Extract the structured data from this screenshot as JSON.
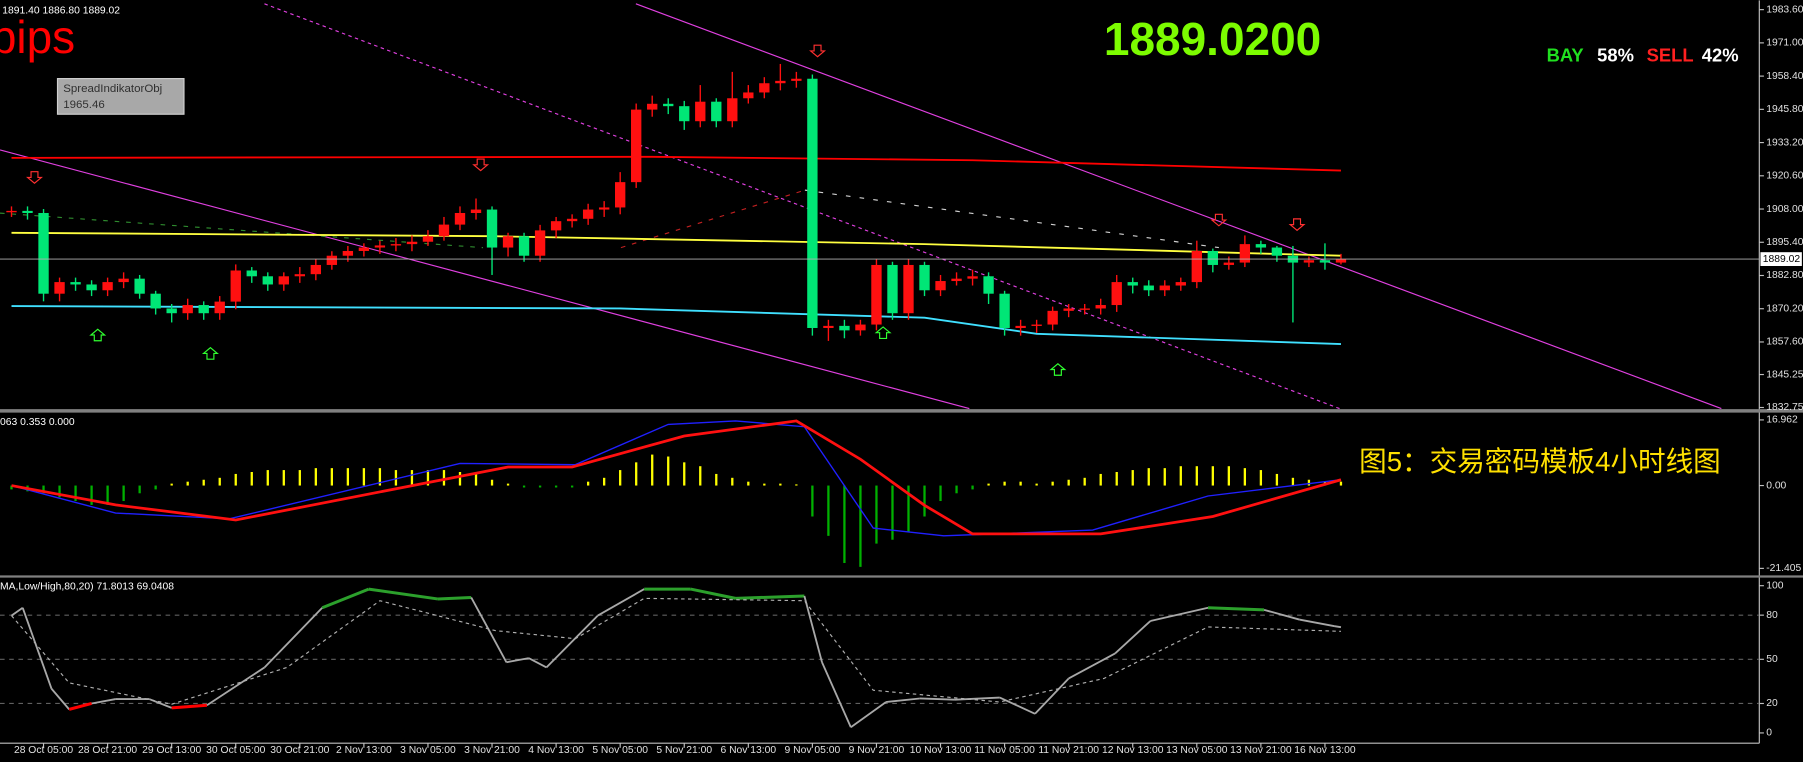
{
  "header": {
    "ohlc_text": "1891.40 1886.80 1889.02",
    "pips_text": "pips",
    "tooltip_name": "SpreadIndikatorObj",
    "tooltip_value": "1965.46",
    "price": "1889.0200",
    "bay_label": "BAY",
    "bay_pct": "58%",
    "sell_label": "SELL",
    "sell_pct": "42%",
    "caption": "图5：交易密码模板4小时线图"
  },
  "chart_data": [
    {
      "type": "candlestick",
      "categories": [
        null,
        null,
        "28 Oct 05:00",
        null,
        null,
        null,
        "28 Oct 21:00",
        null,
        null,
        null,
        "29 Oct 13:00",
        null,
        null,
        null,
        "30 Oct 05:00",
        null,
        null,
        null,
        "30 Oct 21:00",
        null,
        null,
        null,
        "2 Nov 13:00",
        null,
        null,
        null,
        "3 Nov 05:00",
        null,
        null,
        null,
        "3 Nov 21:00",
        null,
        null,
        null,
        "4 Nov 13:00",
        null,
        null,
        null,
        "5 Nov 05:00",
        null,
        null,
        null,
        "5 Nov 21:00",
        null,
        null,
        null,
        "6 Nov 13:00",
        null,
        null,
        null,
        "9 Nov 05:00",
        null,
        null,
        null,
        "9 Nov 21:00",
        null,
        null,
        null,
        "10 Nov 13:00",
        null,
        null,
        null,
        "11 Nov 05:00",
        null,
        null,
        null,
        "11 Nov 21:00",
        null,
        null,
        null,
        "12 Nov 13:00",
        null,
        null,
        null,
        "13 Nov 05:00",
        null,
        null,
        null,
        "13 Nov 21:00",
        null,
        null,
        null,
        "16 Nov 13:00",
        null
      ],
      "open": [
        1907.0,
        1907.3,
        1906.5,
        1875.9,
        1880.3,
        1879.4,
        1877.2,
        1880.3,
        1881.6,
        1875.9,
        1870.3,
        1868.5,
        1871.6,
        1868.5,
        1872.9,
        1884.7,
        1882.5,
        1879.4,
        1882.5,
        1883.3,
        1886.8,
        1890.3,
        1892.1,
        1893.4,
        1894.2,
        1894.7,
        1895.6,
        1897.7,
        1902.1,
        1906.5,
        1907.8,
        1893.4,
        1897.7,
        1890.3,
        1899.9,
        1903.4,
        1904.3,
        1907.8,
        1908.6,
        1918.2,
        1945.7,
        1947.9,
        1947.0,
        1941.3,
        1948.7,
        1941.3,
        1950.0,
        1952.2,
        1955.7,
        1956.6,
        1957.4,
        1862.9,
        1863.7,
        1862.0,
        1864.2,
        1886.8,
        1868.5,
        1886.8,
        1877.2,
        1880.7,
        1881.6,
        1882.5,
        1875.9,
        1862.9,
        1863.7,
        1864.2,
        1869.4,
        1870.3,
        1870.3,
        1871.6,
        1880.3,
        1879.0,
        1877.2,
        1879.0,
        1880.3,
        1892.1,
        1886.8,
        1887.7,
        1894.7,
        1893.4,
        1890.3,
        1887.7,
        1888.6,
        1887.7
      ],
      "high": [
        1909,
        1909,
        1908,
        1882,
        1882,
        1881,
        1882,
        1884,
        1883,
        1877,
        1872,
        1874,
        1873,
        1875,
        1887,
        1886,
        1884,
        1884,
        1886,
        1889,
        1892,
        1894,
        1895,
        1896,
        1897,
        1898,
        1900,
        1905,
        1909,
        1912,
        1909,
        1899,
        1899,
        1902,
        1905,
        1906,
        1910,
        1911,
        1922,
        1948,
        1951,
        1950,
        1949,
        1955,
        1950,
        1960,
        1955,
        1958,
        1963,
        1960,
        1959,
        1866,
        1866,
        1866,
        1889,
        1888,
        1889,
        1888,
        1883,
        1884,
        1885,
        1884,
        1877,
        1866,
        1866,
        1871,
        1872,
        1872,
        1874,
        1883,
        1882,
        1881,
        1881,
        1882,
        1896,
        1893,
        1890,
        1898,
        1896,
        1894,
        1894,
        1890,
        1895,
        1891
      ],
      "low": [
        1905,
        1904,
        1873,
        1873,
        1877,
        1875,
        1875,
        1878,
        1874,
        1868,
        1865,
        1866,
        1866,
        1866,
        1870,
        1880,
        1877,
        1877,
        1880,
        1881,
        1885,
        1888,
        1890,
        1891,
        1892,
        1892,
        1894,
        1896,
        1900,
        1904,
        1883,
        1890,
        1888,
        1888,
        1897,
        1901,
        1902,
        1905,
        1906,
        1916,
        1943,
        1944,
        1938,
        1939,
        1939,
        1939,
        1948,
        1950,
        1953,
        1954,
        1860,
        1858,
        1859,
        1860,
        1862,
        1866,
        1866,
        1875,
        1875,
        1879,
        1879,
        1872,
        1860,
        1860,
        1861,
        1862,
        1867,
        1868,
        1868,
        1869,
        1876,
        1875,
        1875,
        1877,
        1878,
        1884,
        1885,
        1886,
        1891,
        1888,
        1865,
        1886,
        1885,
        1887
      ],
      "close": [
        1907.3,
        1906.5,
        1875.9,
        1880.3,
        1879.4,
        1877.2,
        1880.3,
        1881.6,
        1875.9,
        1870.3,
        1868.5,
        1871.6,
        1868.5,
        1872.9,
        1884.7,
        1882.5,
        1879.4,
        1882.5,
        1883.3,
        1886.8,
        1890.3,
        1892.1,
        1893.4,
        1894.2,
        1894.7,
        1895.6,
        1897.7,
        1902.1,
        1906.5,
        1907.8,
        1893.4,
        1897.7,
        1890.3,
        1899.9,
        1903.4,
        1904.3,
        1907.8,
        1908.6,
        1918.2,
        1945.7,
        1947.9,
        1947.0,
        1941.3,
        1948.7,
        1941.3,
        1950.0,
        1952.2,
        1955.7,
        1956.6,
        1957.4,
        1862.9,
        1863.7,
        1862.0,
        1864.2,
        1886.8,
        1868.5,
        1886.8,
        1877.2,
        1880.7,
        1881.6,
        1882.5,
        1875.9,
        1862.9,
        1863.7,
        1864.2,
        1869.4,
        1870.3,
        1870.3,
        1871.6,
        1880.3,
        1879.0,
        1877.2,
        1879.0,
        1880.3,
        1892.1,
        1886.8,
        1887.7,
        1894.7,
        1893.4,
        1890.3,
        1887.7,
        1888.6,
        1887.7,
        1889.0
      ],
      "up_color": "#ff1010",
      "down_color": "#00e676",
      "overlays": [
        {
          "color": "#ff0000",
          "x": [
            0,
            40,
            60,
            83
          ],
          "values": [
            1927.4,
            1927.8,
            1926.5,
            1922.6
          ]
        },
        {
          "color": "#ffff40",
          "x": [
            0,
            30,
            57,
            83
          ],
          "values": [
            1899.0,
            1897.7,
            1894.7,
            1890.3
          ]
        },
        {
          "color": "#40e0ff",
          "x": [
            0,
            38,
            57,
            64,
            83
          ],
          "values": [
            1871.2,
            1870.3,
            1866.8,
            1860.7,
            1856.8
          ]
        }
      ],
      "ylim": [
        1831.9,
        1985.8
      ],
      "yticks": [
        {
          "value": 1983.6,
          "label": "1983.60"
        },
        {
          "value": 1971,
          "label": "1971.00"
        },
        {
          "value": 1958.4,
          "label": "1958.40"
        },
        {
          "value": 1945.8,
          "label": "1945.80"
        },
        {
          "value": 1933.2,
          "label": "1933.20"
        },
        {
          "value": 1920.6,
          "label": "1920.60"
        },
        {
          "value": 1908,
          "label": "1908.00"
        },
        {
          "value": 1895.4,
          "label": "1895.40"
        },
        {
          "value": 1882.8,
          "label": "1882.80"
        },
        {
          "value": 1870.2,
          "label": "1870.20"
        },
        {
          "value": 1857.6,
          "label": "1857.60"
        },
        1845.25,
        1832.75
      ],
      "current_price": 1889.02
    },
    {
      "type": "macd",
      "header": "063 0.353 0.000",
      "values": [
        -1,
        -1.5,
        -2,
        -3,
        -4,
        -5,
        -5,
        -4,
        -2,
        -1,
        0.5,
        1,
        1.5,
        2,
        3,
        3.5,
        4,
        4,
        4,
        4.5,
        4.5,
        4.5,
        4.5,
        4.5,
        4,
        4,
        4,
        4,
        3.5,
        3,
        1.5,
        0.5,
        -0.5,
        -0.5,
        -0.5,
        -0.5,
        1,
        2,
        4,
        6,
        8,
        7.5,
        6,
        5,
        3,
        2,
        1,
        0.5,
        0.5,
        0.3,
        -8,
        -13,
        -20,
        -21,
        -15,
        -14,
        -12,
        -8,
        -4,
        -2,
        -1,
        0.5,
        1,
        1,
        0.5,
        1,
        1.5,
        2,
        3,
        3.5,
        4,
        4.5,
        4.5,
        5,
        5,
        5,
        5,
        4.5,
        4,
        3,
        2,
        1.5,
        1,
        1
      ],
      "pos_color": "#ffff00",
      "neg_color": "#00b000",
      "lines": [
        {
          "color": "#2020ff",
          "x": [
            0,
            6.5,
            13.6,
            28,
            35.2,
            41,
            45.2,
            49.5,
            53.8,
            58.2,
            67.5,
            74.7,
            83
          ],
          "values": [
            0,
            -7.1,
            -8.6,
            5.7,
            5.4,
            15.8,
            16.7,
            15.2,
            -11,
            -13,
            -11.5,
            -2.7,
            1.5
          ]
        },
        {
          "color": "#ff1010",
          "x": [
            0,
            6.5,
            14,
            31,
            35,
            42,
            49,
            53,
            57,
            60,
            68,
            75,
            83
          ],
          "values": [
            0,
            -5,
            -8.9,
            4.8,
            4.8,
            12.8,
            16.7,
            6.8,
            -5.1,
            -12.5,
            -12.5,
            -8,
            1.5
          ]
        }
      ],
      "ylim": [
        -23.2,
        18.4
      ],
      "yticks": [
        16.962,
        {
          "value": 0,
          "label": "0.00"
        },
        -21.405
      ]
    },
    {
      "type": "stochastic",
      "header": "MA,Low/High,80,20) 71.8013 69.0408",
      "high_color": "#2ca02c",
      "low_color": "#ff0000",
      "lines": [
        {
          "color": "#a8a8a8",
          "dashed": false,
          "x": [
            0,
            0.7,
            2.5,
            3.6,
            5,
            6.5,
            8.6,
            10,
            12.2,
            15.8,
            19.4,
            22.3,
            26.6,
            28.7,
            30.9,
            32.3,
            33.4,
            36.6,
            39.5,
            42.4,
            45.2,
            49.5,
            50.6,
            52.4,
            54.6,
            56.7,
            58.9,
            61.7,
            63.9,
            66,
            68.9,
            71.1,
            74.7,
            78.2,
            80.4,
            82.6,
            83
          ],
          "values": [
            79.7,
            85,
            30,
            16,
            20,
            23,
            23,
            17,
            18.8,
            44.5,
            85,
            97.7,
            91,
            92,
            48,
            50.8,
            44.5,
            79.7,
            97.7,
            97.7,
            91.4,
            93,
            48,
            3.9,
            21,
            23.4,
            22.6,
            24,
            13,
            37,
            54,
            76,
            85,
            83.6,
            77,
            72.5,
            71.8
          ]
        },
        {
          "color": "#b0b0b0",
          "dashed": true,
          "x": [
            0,
            3.6,
            10,
            17.2,
            23,
            30.2,
            35.2,
            39.5,
            49.5,
            53.8,
            61.7,
            68.2,
            74.7,
            83
          ],
          "values": [
            79.7,
            34,
            19.5,
            44.5,
            89.8,
            69.5,
            64,
            91.4,
            89.8,
            29,
            21,
            37,
            72,
            69.0
          ]
        }
      ],
      "levels": [
        80,
        50,
        20
      ],
      "ylim": [
        -6.2,
        104.7
      ],
      "yticks": [
        100,
        80,
        50,
        20,
        0
      ]
    }
  ]
}
